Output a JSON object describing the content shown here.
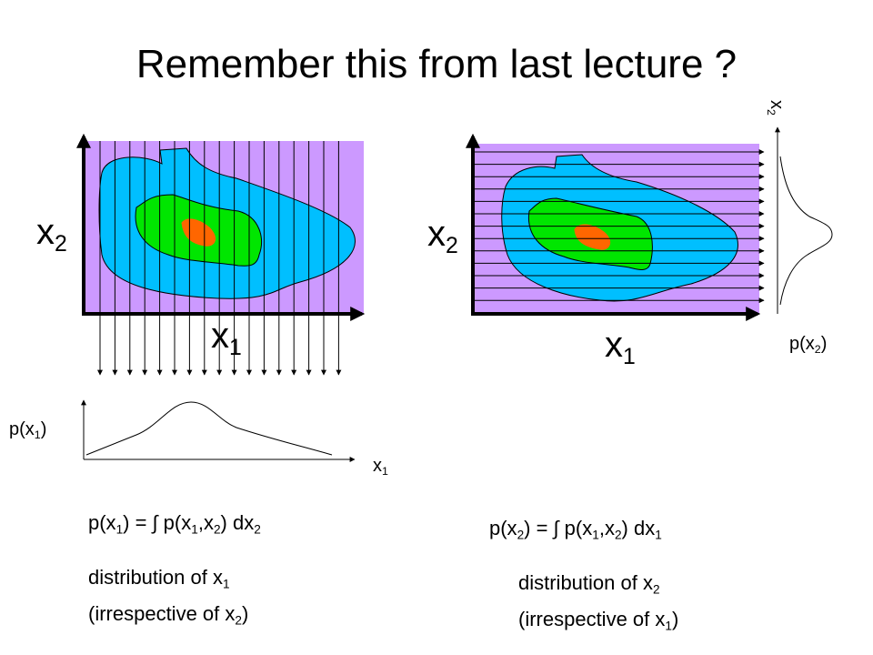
{
  "title": "Remember this from last lecture ?",
  "left_panel": {
    "y_label": [
      {
        "t": "x"
      },
      {
        "sub": "2"
      }
    ],
    "x_label": [
      {
        "t": "x"
      },
      {
        "sub": "1"
      }
    ],
    "marginal_y_label": [
      {
        "t": "p(x"
      },
      {
        "sub": "1"
      },
      {
        "t": ")"
      }
    ],
    "marginal_x_label": [
      {
        "t": "x"
      },
      {
        "sub": "1"
      }
    ],
    "formula": [
      {
        "t": "p(x"
      },
      {
        "sub": "1"
      },
      {
        "t": ") = ∫ p(x"
      },
      {
        "sub": "1"
      },
      {
        "t": ",x"
      },
      {
        "sub": "2"
      },
      {
        "t": ") dx"
      },
      {
        "sub": "2"
      }
    ],
    "description": [
      [
        {
          "t": "distribution of x"
        },
        {
          "sub": "1"
        }
      ],
      [
        {
          "t": "(irrespective of x"
        },
        {
          "sub": "2"
        },
        {
          "t": ")"
        }
      ]
    ]
  },
  "right_panel": {
    "y_label": [
      {
        "t": "x"
      },
      {
        "sub": "2"
      }
    ],
    "x_label": [
      {
        "t": "x"
      },
      {
        "sub": "1"
      }
    ],
    "marginal_axis_label": [
      {
        "t": "x"
      },
      {
        "sub": "2"
      }
    ],
    "marginal_label": [
      {
        "t": "p(x"
      },
      {
        "sub": "2"
      },
      {
        "t": ")"
      }
    ],
    "formula": [
      {
        "t": "p(x"
      },
      {
        "sub": "2"
      },
      {
        "t": ") = ∫ p(x"
      },
      {
        "sub": "1"
      },
      {
        "t": ",x"
      },
      {
        "sub": "2"
      },
      {
        "t": ") dx"
      },
      {
        "sub": "1"
      }
    ],
    "description": [
      [
        {
          "t": "distribution of x"
        },
        {
          "sub": "2"
        }
      ],
      [
        {
          "t": "(irrespective of x"
        },
        {
          "sub": "1"
        },
        {
          "t": ")"
        }
      ]
    ]
  }
}
